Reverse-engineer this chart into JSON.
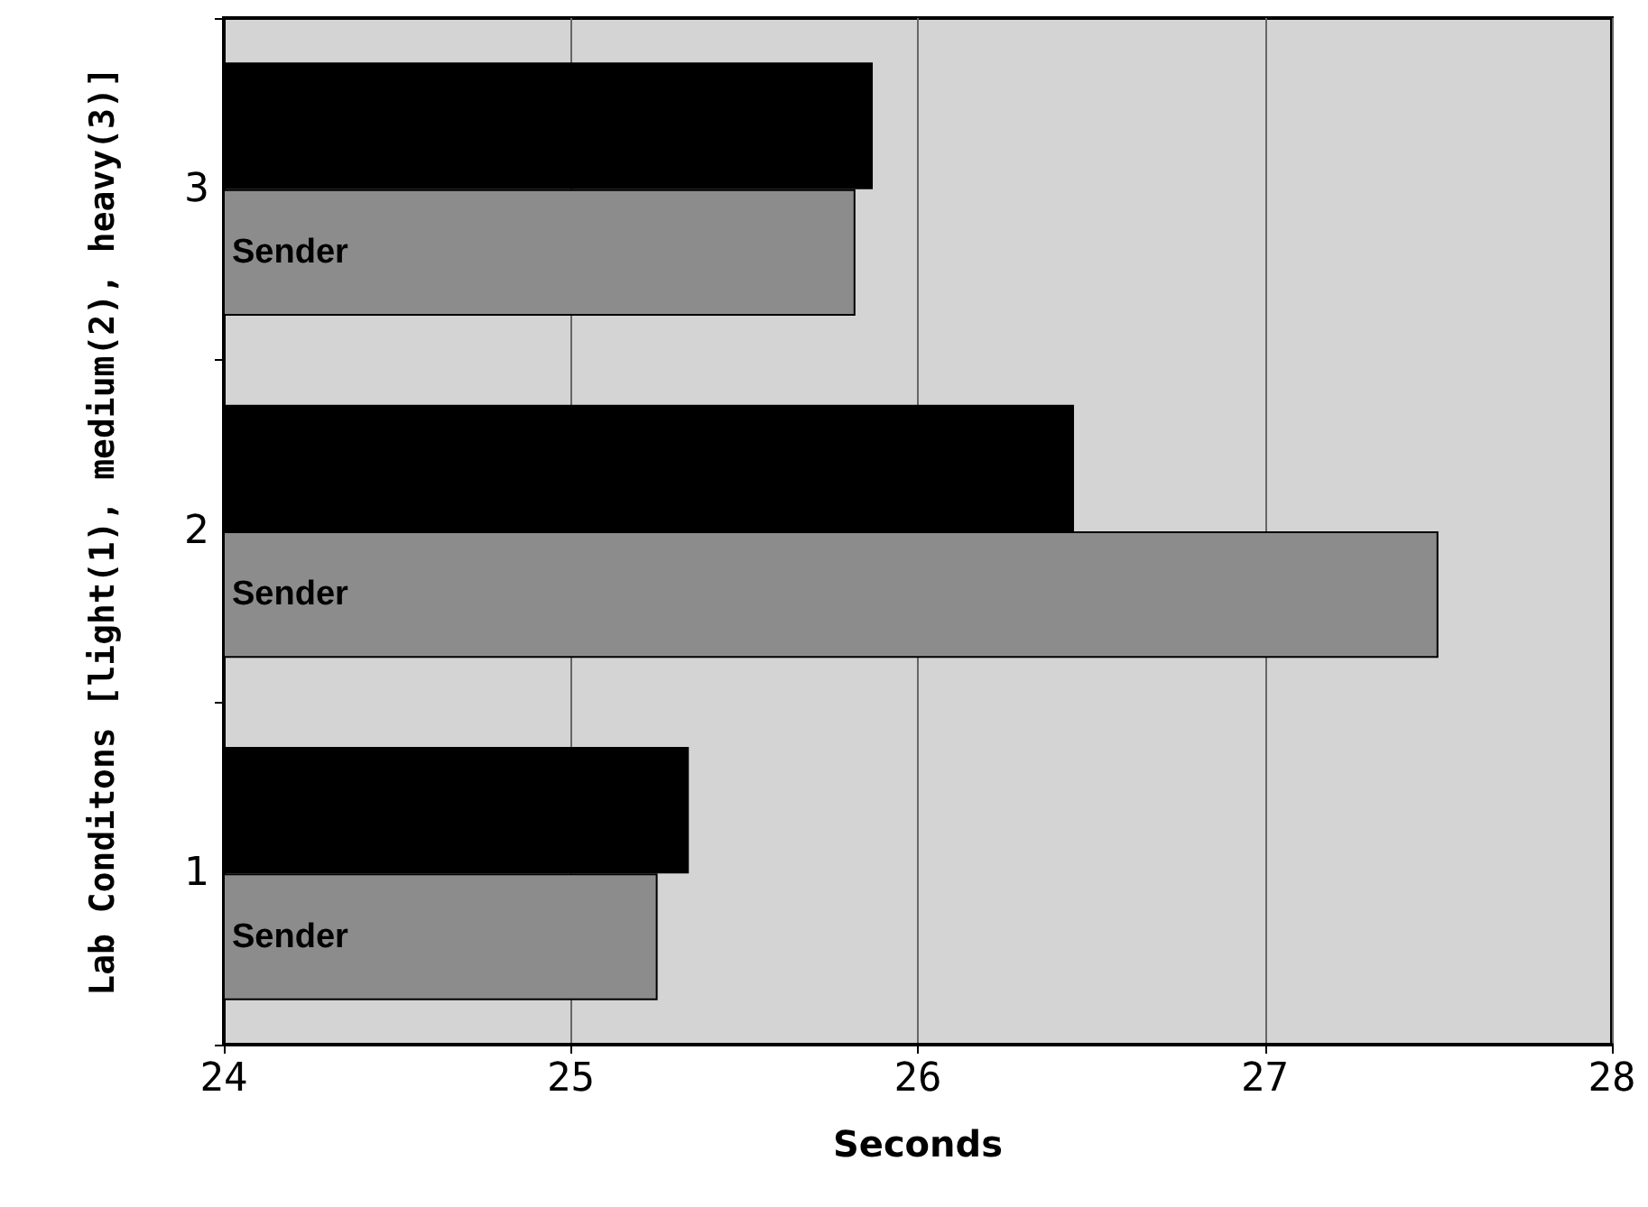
{
  "chart_data": {
    "type": "bar",
    "orientation": "horizontal",
    "xlabel": "Seconds",
    "ylabel": "Lab Conditons [light(1), medium(2), heavy(3)]",
    "categories": [
      "3",
      "2",
      "1"
    ],
    "series": [
      {
        "color": "#000000",
        "values": [
          25.87,
          26.45,
          25.34
        ]
      },
      {
        "name": "Sender",
        "color": "#8c8c8c",
        "values": [
          25.82,
          27.5,
          25.25
        ]
      }
    ],
    "xlim": [
      24,
      28
    ],
    "xticks": [
      24,
      25,
      26,
      27,
      28
    ],
    "grid": "x",
    "legend": false
  }
}
